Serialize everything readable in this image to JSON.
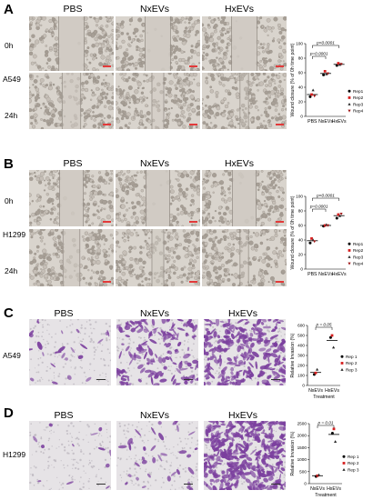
{
  "panels": {
    "A": {
      "label": "A",
      "conditions": [
        "PBS",
        "NxEVs",
        "HxEVs"
      ],
      "cell_line": "A549",
      "timepoints": [
        "0h",
        "24h"
      ]
    },
    "B": {
      "label": "B",
      "conditions": [
        "PBS",
        "NxEVs",
        "HxEVs"
      ],
      "cell_line": "H1299",
      "timepoints": [
        "0h",
        "24h"
      ]
    },
    "C": {
      "label": "C",
      "conditions": [
        "PBS",
        "NxEVs",
        "HxEVs"
      ],
      "cell_line": "A549"
    },
    "D": {
      "label": "D",
      "conditions": [
        "PBS",
        "NxEVs",
        "HxEVs"
      ],
      "cell_line": "H1299"
    }
  },
  "colors": {
    "scale_red": "#e23a3a",
    "stain_purple": "#7b3f9e",
    "rep1": "#000000",
    "rep2": "#d61f1f",
    "rep3": "#2a2a2a",
    "rep4": "#a01818"
  },
  "chart_data": [
    {
      "id": "A",
      "type": "scatter",
      "categories": [
        "PBS",
        "NxEVs",
        "HxEVs"
      ],
      "ylabel": "Wound closure (% of 0h time point)",
      "ylim": [
        0,
        100
      ],
      "yticks": [
        "0",
        "20",
        "40",
        "60",
        "80",
        "100"
      ],
      "legend": [
        "Rep1",
        "Rep2",
        "Rep3",
        "Rep4"
      ],
      "series": [
        {
          "name": "Rep1",
          "values": [
            27,
            57,
            70
          ]
        },
        {
          "name": "Rep2",
          "values": [
            30,
            62,
            73
          ]
        },
        {
          "name": "Rep3",
          "values": [
            36,
            58,
            71
          ]
        },
        {
          "name": "Rep4",
          "values": [
            28,
            59,
            72
          ]
        }
      ],
      "means": [
        30,
        59,
        71.5
      ],
      "sig": [
        {
          "from": 0,
          "to": 1,
          "text": "p=0.0001"
        },
        {
          "from": 0,
          "to": 2,
          "text": "p<0.0001"
        }
      ]
    },
    {
      "id": "B",
      "type": "scatter",
      "categories": [
        "PBS",
        "NxEVs",
        "HxEVs"
      ],
      "ylabel": "Wound closure (% of 0h time point)",
      "ylim": [
        0,
        100
      ],
      "yticks": [
        "0",
        "20",
        "40",
        "60",
        "80",
        "100"
      ],
      "legend": [
        "Rep1",
        "Rep2",
        "Rep3",
        "Rep4"
      ],
      "series": [
        {
          "name": "Rep1",
          "values": [
            36,
            59,
            70
          ]
        },
        {
          "name": "Rep2",
          "values": [
            42,
            60,
            75
          ]
        },
        {
          "name": "Rep3",
          "values": [
            40,
            61,
            73
          ]
        },
        {
          "name": "Rep4",
          "values": [
            38,
            60,
            76
          ]
        }
      ],
      "means": [
        39,
        60,
        73.5
      ],
      "sig": [
        {
          "from": 0,
          "to": 1,
          "text": "p=0.0001"
        },
        {
          "from": 0,
          "to": 2,
          "text": "p<0.0001"
        }
      ]
    },
    {
      "id": "C",
      "type": "scatter",
      "categories": [
        "NxEVs",
        "HxEVs"
      ],
      "xlabel": "Treatment",
      "ylabel": "Relative Invasion (%)",
      "ylim": [
        0,
        600
      ],
      "yticks": [
        "0",
        "100",
        "200",
        "300",
        "400",
        "500",
        "600"
      ],
      "legend": [
        "Rep 1",
        "Rep 2",
        "Rep 3"
      ],
      "series": [
        {
          "name": "Rep 1",
          "values": [
            110,
            480
          ]
        },
        {
          "name": "Rep 2",
          "values": [
            125,
            500
          ]
        },
        {
          "name": "Rep 3",
          "values": [
            160,
            380
          ]
        }
      ],
      "means": [
        130,
        450
      ],
      "sig": [
        {
          "from": 0,
          "to": 1,
          "text": "p = 0.05"
        }
      ]
    },
    {
      "id": "D",
      "type": "scatter",
      "categories": [
        "NxEVs",
        "HxEVs"
      ],
      "xlabel": "Treatment",
      "ylabel": "Relative Invasion (%)",
      "ylim": [
        0,
        2500
      ],
      "yticks": [
        "0",
        "500",
        "1000",
        "1500",
        "2000",
        "2500"
      ],
      "legend": [
        "Rep 1",
        "Rep 2",
        "Rep 3"
      ],
      "series": [
        {
          "name": "Rep 1",
          "values": [
            300,
            2100
          ]
        },
        {
          "name": "Rep 2",
          "values": [
            330,
            2280
          ]
        },
        {
          "name": "Rep 3",
          "values": [
            360,
            1750
          ]
        }
      ],
      "means": [
        330,
        2050
      ],
      "sig": [
        {
          "from": 0,
          "to": 1,
          "text": "p = 0.01"
        }
      ]
    }
  ]
}
